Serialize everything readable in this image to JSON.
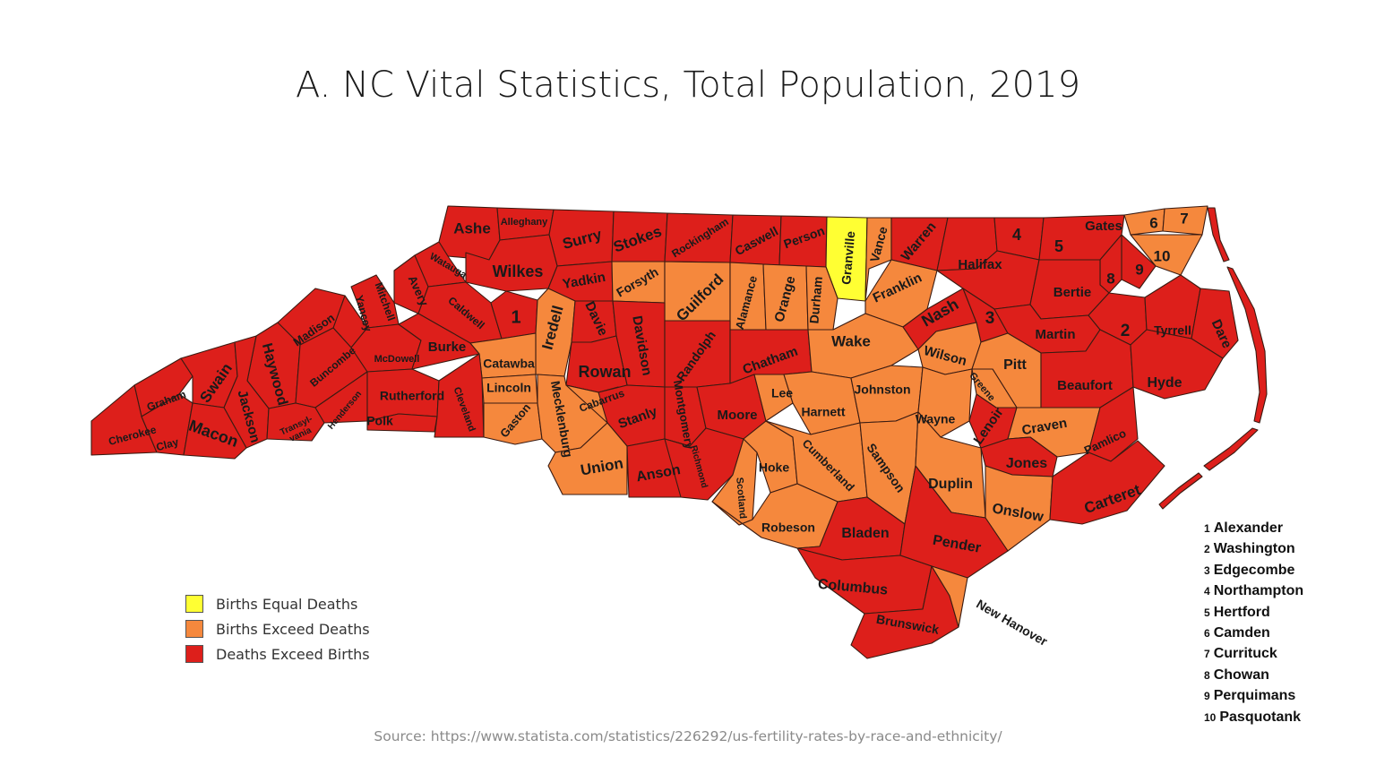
{
  "title": "A. NC Vital Statistics, Total Population, 2019",
  "source": "Source: https://www.statista.com/statistics/226292/us-fertility-rates-by-race-and-ethnicity/",
  "colors": {
    "equal": "#ffff33",
    "births_exceed": "#f5883d",
    "deaths_exceed": "#dd1f1b",
    "county_border": "#3a1b12"
  },
  "legend": [
    {
      "key": "equal",
      "label": "Births Equal Deaths"
    },
    {
      "key": "births_exceed",
      "label": "Births Exceed Deaths"
    },
    {
      "key": "deaths_exceed",
      "label": "Deaths Exceed Births"
    }
  ],
  "numbered_counties": [
    {
      "num": "1",
      "name": "Alexander"
    },
    {
      "num": "2",
      "name": "Washington"
    },
    {
      "num": "3",
      "name": "Edgecombe"
    },
    {
      "num": "4",
      "name": "Northampton"
    },
    {
      "num": "5",
      "name": "Hertford"
    },
    {
      "num": "6",
      "name": "Camden"
    },
    {
      "num": "7",
      "name": "Currituck"
    },
    {
      "num": "8",
      "name": "Chowan"
    },
    {
      "num": "9",
      "name": "Perquimans"
    },
    {
      "num": "10",
      "name": "Pasquotank"
    }
  ],
  "counties": [
    {
      "label": "Ashe",
      "status": "deaths_exceed"
    },
    {
      "label": "Alleghany",
      "status": "deaths_exceed"
    },
    {
      "label": "Surry",
      "status": "deaths_exceed"
    },
    {
      "label": "Stokes",
      "status": "deaths_exceed"
    },
    {
      "label": "Rockingham",
      "status": "deaths_exceed"
    },
    {
      "label": "Caswell",
      "status": "deaths_exceed"
    },
    {
      "label": "Person",
      "status": "deaths_exceed"
    },
    {
      "label": "Granville",
      "status": "equal"
    },
    {
      "label": "Vance",
      "status": "births_exceed"
    },
    {
      "label": "Warren",
      "status": "deaths_exceed"
    },
    {
      "label": "4",
      "status": "deaths_exceed"
    },
    {
      "label": "5",
      "status": "deaths_exceed"
    },
    {
      "label": "Gates",
      "status": "deaths_exceed"
    },
    {
      "label": "6",
      "status": "births_exceed"
    },
    {
      "label": "7",
      "status": "births_exceed"
    },
    {
      "label": "10",
      "status": "births_exceed"
    },
    {
      "label": "9",
      "status": "deaths_exceed"
    },
    {
      "label": "8",
      "status": "deaths_exceed"
    },
    {
      "label": "Watauga",
      "status": "deaths_exceed"
    },
    {
      "label": "Wilkes",
      "status": "deaths_exceed"
    },
    {
      "label": "Yadkin",
      "status": "deaths_exceed"
    },
    {
      "label": "Forsyth",
      "status": "births_exceed"
    },
    {
      "label": "Guilford",
      "status": "births_exceed"
    },
    {
      "label": "Alamance",
      "status": "births_exceed"
    },
    {
      "label": "Orange",
      "status": "births_exceed"
    },
    {
      "label": "Durham",
      "status": "births_exceed"
    },
    {
      "label": "Franklin",
      "status": "births_exceed"
    },
    {
      "label": "Halifax",
      "status": "deaths_exceed"
    },
    {
      "label": "Bertie",
      "status": "deaths_exceed"
    },
    {
      "label": "Avery",
      "status": "deaths_exceed"
    },
    {
      "label": "Mitchell",
      "status": "deaths_exceed"
    },
    {
      "label": "Yancey",
      "status": "deaths_exceed"
    },
    {
      "label": "Madison",
      "status": "deaths_exceed"
    },
    {
      "label": "Caldwell",
      "status": "deaths_exceed"
    },
    {
      "label": "1",
      "status": "deaths_exceed"
    },
    {
      "label": "Iredell",
      "status": "births_exceed"
    },
    {
      "label": "Davie",
      "status": "deaths_exceed"
    },
    {
      "label": "Davidson",
      "status": "deaths_exceed"
    },
    {
      "label": "Randolph",
      "status": "deaths_exceed"
    },
    {
      "label": "Chatham",
      "status": "deaths_exceed"
    },
    {
      "label": "Wake",
      "status": "births_exceed"
    },
    {
      "label": "Nash",
      "status": "deaths_exceed"
    },
    {
      "label": "3",
      "status": "deaths_exceed"
    },
    {
      "label": "Martin",
      "status": "deaths_exceed"
    },
    {
      "label": "2",
      "status": "deaths_exceed"
    },
    {
      "label": "Tyrrell",
      "status": "deaths_exceed"
    },
    {
      "label": "Dare",
      "status": "deaths_exceed"
    },
    {
      "label": "Haywood",
      "status": "deaths_exceed"
    },
    {
      "label": "Buncombe",
      "status": "deaths_exceed"
    },
    {
      "label": "McDowell",
      "status": "deaths_exceed"
    },
    {
      "label": "Burke",
      "status": "deaths_exceed"
    },
    {
      "label": "Catawba",
      "status": "births_exceed"
    },
    {
      "label": "Rowan",
      "status": "deaths_exceed"
    },
    {
      "label": "Wilson",
      "status": "births_exceed"
    },
    {
      "label": "Pitt",
      "status": "births_exceed"
    },
    {
      "label": "Beaufort",
      "status": "deaths_exceed"
    },
    {
      "label": "Hyde",
      "status": "deaths_exceed"
    },
    {
      "label": "Graham",
      "status": "deaths_exceed"
    },
    {
      "label": "Swain",
      "status": "deaths_exceed"
    },
    {
      "label": "Jackson",
      "status": "deaths_exceed"
    },
    {
      "label": "Transyl-\nvania",
      "status": "deaths_exceed"
    },
    {
      "label": "Henderson",
      "status": "deaths_exceed"
    },
    {
      "label": "Rutherford",
      "status": "deaths_exceed"
    },
    {
      "label": "Polk",
      "status": "deaths_exceed"
    },
    {
      "label": "Cleveland",
      "status": "deaths_exceed"
    },
    {
      "label": "Lincoln",
      "status": "births_exceed"
    },
    {
      "label": "Gaston",
      "status": "births_exceed"
    },
    {
      "label": "Mecklenburg",
      "status": "births_exceed"
    },
    {
      "label": "Cabarrus",
      "status": "births_exceed"
    },
    {
      "label": "Stanly",
      "status": "deaths_exceed"
    },
    {
      "label": "Montgomery",
      "status": "deaths_exceed"
    },
    {
      "label": "Moore",
      "status": "deaths_exceed"
    },
    {
      "label": "Lee",
      "status": "births_exceed"
    },
    {
      "label": "Harnett",
      "status": "births_exceed"
    },
    {
      "label": "Johnston",
      "status": "births_exceed"
    },
    {
      "label": "Wayne",
      "status": "births_exceed"
    },
    {
      "label": "Greene",
      "status": "births_exceed"
    },
    {
      "label": "Lenoir",
      "status": "deaths_exceed"
    },
    {
      "label": "Craven",
      "status": "births_exceed"
    },
    {
      "label": "Pamlico",
      "status": "deaths_exceed"
    },
    {
      "label": "Cherokee",
      "status": "deaths_exceed"
    },
    {
      "label": "Clay",
      "status": "deaths_exceed"
    },
    {
      "label": "Macon",
      "status": "deaths_exceed"
    },
    {
      "label": "Union",
      "status": "births_exceed"
    },
    {
      "label": "Anson",
      "status": "deaths_exceed"
    },
    {
      "label": "Richmond",
      "status": "deaths_exceed"
    },
    {
      "label": "Scotland",
      "status": "births_exceed"
    },
    {
      "label": "Hoke",
      "status": "births_exceed"
    },
    {
      "label": "Cumberland",
      "status": "births_exceed"
    },
    {
      "label": "Sampson",
      "status": "births_exceed"
    },
    {
      "label": "Duplin",
      "status": "births_exceed"
    },
    {
      "label": "Jones",
      "status": "deaths_exceed"
    },
    {
      "label": "Onslow",
      "status": "births_exceed"
    },
    {
      "label": "Carteret",
      "status": "deaths_exceed"
    },
    {
      "label": "Robeson",
      "status": "births_exceed"
    },
    {
      "label": "Bladen",
      "status": "deaths_exceed"
    },
    {
      "label": "Pender",
      "status": "deaths_exceed"
    },
    {
      "label": "Columbus",
      "status": "deaths_exceed"
    },
    {
      "label": "Brunswick",
      "status": "deaths_exceed"
    },
    {
      "label": "New Hanover",
      "status": "births_exceed"
    }
  ]
}
